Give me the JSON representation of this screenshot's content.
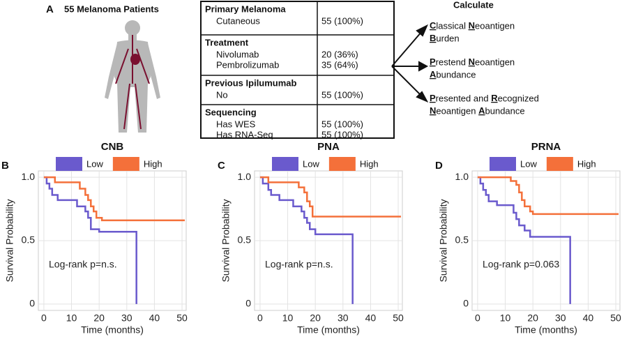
{
  "panel_a": {
    "letter": "A",
    "title": "55 Melanoma Patients",
    "table": [
      {
        "header": "Primary Melanoma",
        "rows": [
          [
            "Cutaneous",
            "55 (100%)"
          ]
        ]
      },
      {
        "header": "Treatment",
        "rows": [
          [
            "Nivolumab",
            "20 (36%)"
          ],
          [
            "Pembrolizumab",
            "35 (64%)"
          ]
        ]
      },
      {
        "header": "Previous Ipilumumab",
        "rows": [
          [
            "No",
            "55 (100%)"
          ]
        ]
      },
      {
        "header": "Sequencing",
        "rows": [
          [
            "Has WES",
            "55 (100%)"
          ],
          [
            "Has RNA-Seq",
            "55 (100%)"
          ]
        ]
      }
    ],
    "calculate": {
      "title": "Calculate",
      "items": [
        [
          "Classical Neoantigen",
          "Burden"
        ],
        [
          "Prestend Neoantigen",
          "Abundance"
        ],
        [
          "Presented and Recognized",
          "Neoantigen Abundance"
        ]
      ]
    }
  },
  "chart_data": [
    {
      "type": "step",
      "letter": "B",
      "title": "CNB",
      "annotation": "Log-rank p=n.s.",
      "x_label": "Time (months)",
      "y_label": "Survival Probability",
      "xlim": [
        -2,
        51.5
      ],
      "ylim": [
        -0.05,
        1.05
      ],
      "xticks": [
        0,
        10,
        20,
        30,
        40,
        50
      ],
      "yticks": [
        0,
        0.5,
        {
          "value": 1,
          "label": "1.0"
        }
      ],
      "grid": true,
      "series": [
        {
          "name": "Low",
          "color": "#6a5acd",
          "x": [
            0,
            1,
            2,
            3,
            5,
            12,
            15,
            16,
            17,
            20,
            33.5,
            33.5
          ],
          "values": [
            1,
            0.95,
            0.91,
            0.86,
            0.82,
            0.77,
            0.73,
            0.68,
            0.59,
            0.57,
            0.57,
            0
          ]
        },
        {
          "name": "High",
          "color": "#f4703a",
          "x": [
            0,
            4,
            13,
            15,
            16,
            17,
            18,
            19,
            21,
            51
          ],
          "values": [
            1,
            0.96,
            0.91,
            0.86,
            0.82,
            0.77,
            0.73,
            0.68,
            0.66,
            0.66
          ]
        }
      ]
    },
    {
      "type": "step",
      "letter": "C",
      "title": "PNA",
      "annotation": "Log-rank p=n.s.",
      "x_label": "Time (months)",
      "y_label": "Survival Probability",
      "xlim": [
        -2,
        51.5
      ],
      "ylim": [
        -0.05,
        1.05
      ],
      "xticks": [
        0,
        10,
        20,
        30,
        40,
        50
      ],
      "yticks": [
        0,
        0.5,
        {
          "value": 1,
          "label": "1.0"
        }
      ],
      "grid": true,
      "series": [
        {
          "name": "Low",
          "color": "#6a5acd",
          "x": [
            0,
            1,
            3,
            4,
            7,
            12,
            15,
            16,
            17,
            18,
            20,
            33.5,
            33.5
          ],
          "values": [
            1,
            0.95,
            0.9,
            0.86,
            0.82,
            0.77,
            0.73,
            0.68,
            0.64,
            0.59,
            0.55,
            0.55,
            0
          ]
        },
        {
          "name": "High",
          "color": "#f4703a",
          "x": [
            0,
            3,
            14,
            16,
            17,
            18,
            19,
            51
          ],
          "values": [
            1,
            0.96,
            0.92,
            0.88,
            0.81,
            0.77,
            0.69,
            0.69
          ]
        }
      ]
    },
    {
      "type": "step",
      "letter": "D",
      "title": "PRNA",
      "annotation": "Log-rank p=0.063",
      "x_label": "Time (months)",
      "y_label": "Survival Probability",
      "xlim": [
        -2,
        51.5
      ],
      "ylim": [
        -0.05,
        1.05
      ],
      "xticks": [
        0,
        10,
        20,
        30,
        40,
        50
      ],
      "yticks": [
        0,
        0.5,
        {
          "value": 1,
          "label": "1.0"
        }
      ],
      "grid": true,
      "series": [
        {
          "name": "Low",
          "color": "#6a5acd",
          "x": [
            0,
            1,
            2,
            3,
            4,
            7,
            13,
            14,
            15,
            17,
            19,
            33.5,
            33.5
          ],
          "values": [
            1,
            0.95,
            0.9,
            0.86,
            0.81,
            0.78,
            0.72,
            0.67,
            0.62,
            0.58,
            0.53,
            0.53,
            0
          ]
        },
        {
          "name": "High",
          "color": "#f4703a",
          "x": [
            0,
            12,
            14,
            15,
            16,
            17,
            19,
            20,
            51
          ],
          "values": [
            1,
            0.97,
            0.94,
            0.88,
            0.82,
            0.77,
            0.73,
            0.71,
            0.71
          ]
        }
      ]
    }
  ]
}
